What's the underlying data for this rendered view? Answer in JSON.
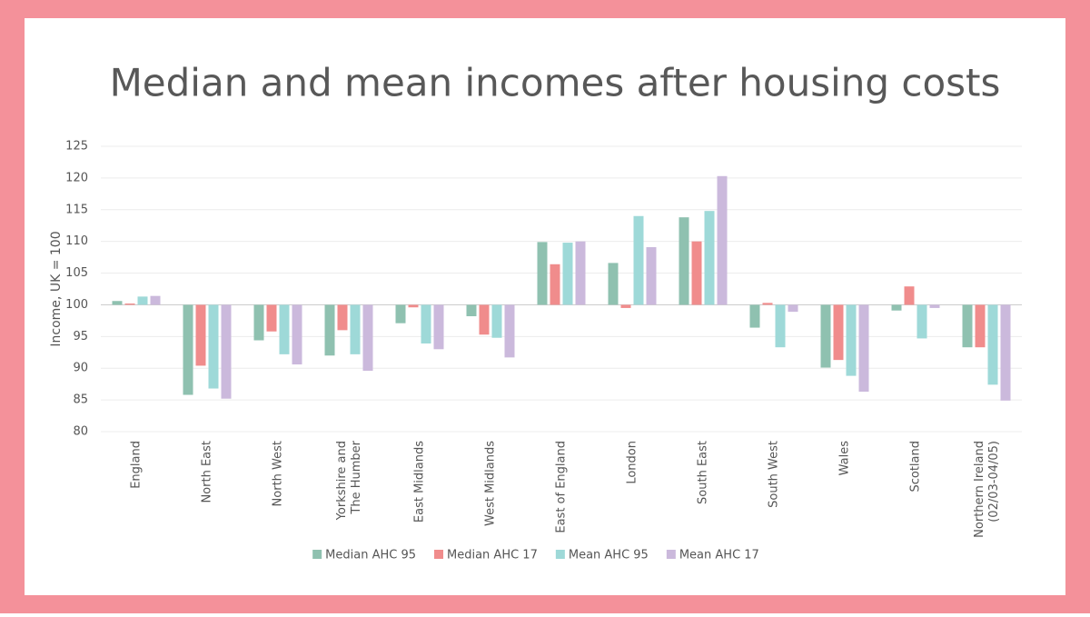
{
  "chart_data": {
    "type": "bar",
    "title": "Median and mean incomes after housing costs",
    "y_label": "Income, UK = 100",
    "categories": [
      "England",
      "North East",
      "North West",
      "Yorkshire and\nThe Humber",
      "East Midlands",
      "West Midlands",
      "East of England",
      "London",
      "South East",
      "South West",
      "Wales",
      "Scotland",
      "Northern Ireland\n(02/03-04/05)"
    ],
    "baseline": 100,
    "series": [
      {
        "name": "Median AHC 95",
        "color": "#8fc1b0",
        "values": [
          100.6,
          85.8,
          94.4,
          92.0,
          97.1,
          98.2,
          109.9,
          106.6,
          113.8,
          96.4,
          90.1,
          99.1,
          93.3
        ]
      },
      {
        "name": "Median AHC 17",
        "color": "#f08c8c",
        "values": [
          100.2,
          90.4,
          95.8,
          96.0,
          99.6,
          95.3,
          106.4,
          99.5,
          110.0,
          100.3,
          91.3,
          102.9,
          93.3
        ]
      },
      {
        "name": "Mean AHC 95",
        "color": "#9ed9d8",
        "values": [
          101.3,
          86.8,
          92.2,
          92.2,
          93.9,
          94.8,
          109.8,
          114.0,
          114.8,
          93.3,
          88.8,
          94.7,
          87.4
        ]
      },
      {
        "name": "Mean AHC 17",
        "color": "#cbb9dc",
        "values": [
          101.4,
          85.2,
          90.6,
          89.6,
          93.0,
          91.7,
          110.0,
          109.1,
          120.3,
          98.9,
          86.3,
          99.5,
          84.9
        ]
      }
    ],
    "ylim": [
      80,
      125
    ],
    "yticks": [
      80,
      85,
      90,
      95,
      100,
      105,
      110,
      115,
      120,
      125
    ],
    "grid": true,
    "legend": "bottom"
  }
}
